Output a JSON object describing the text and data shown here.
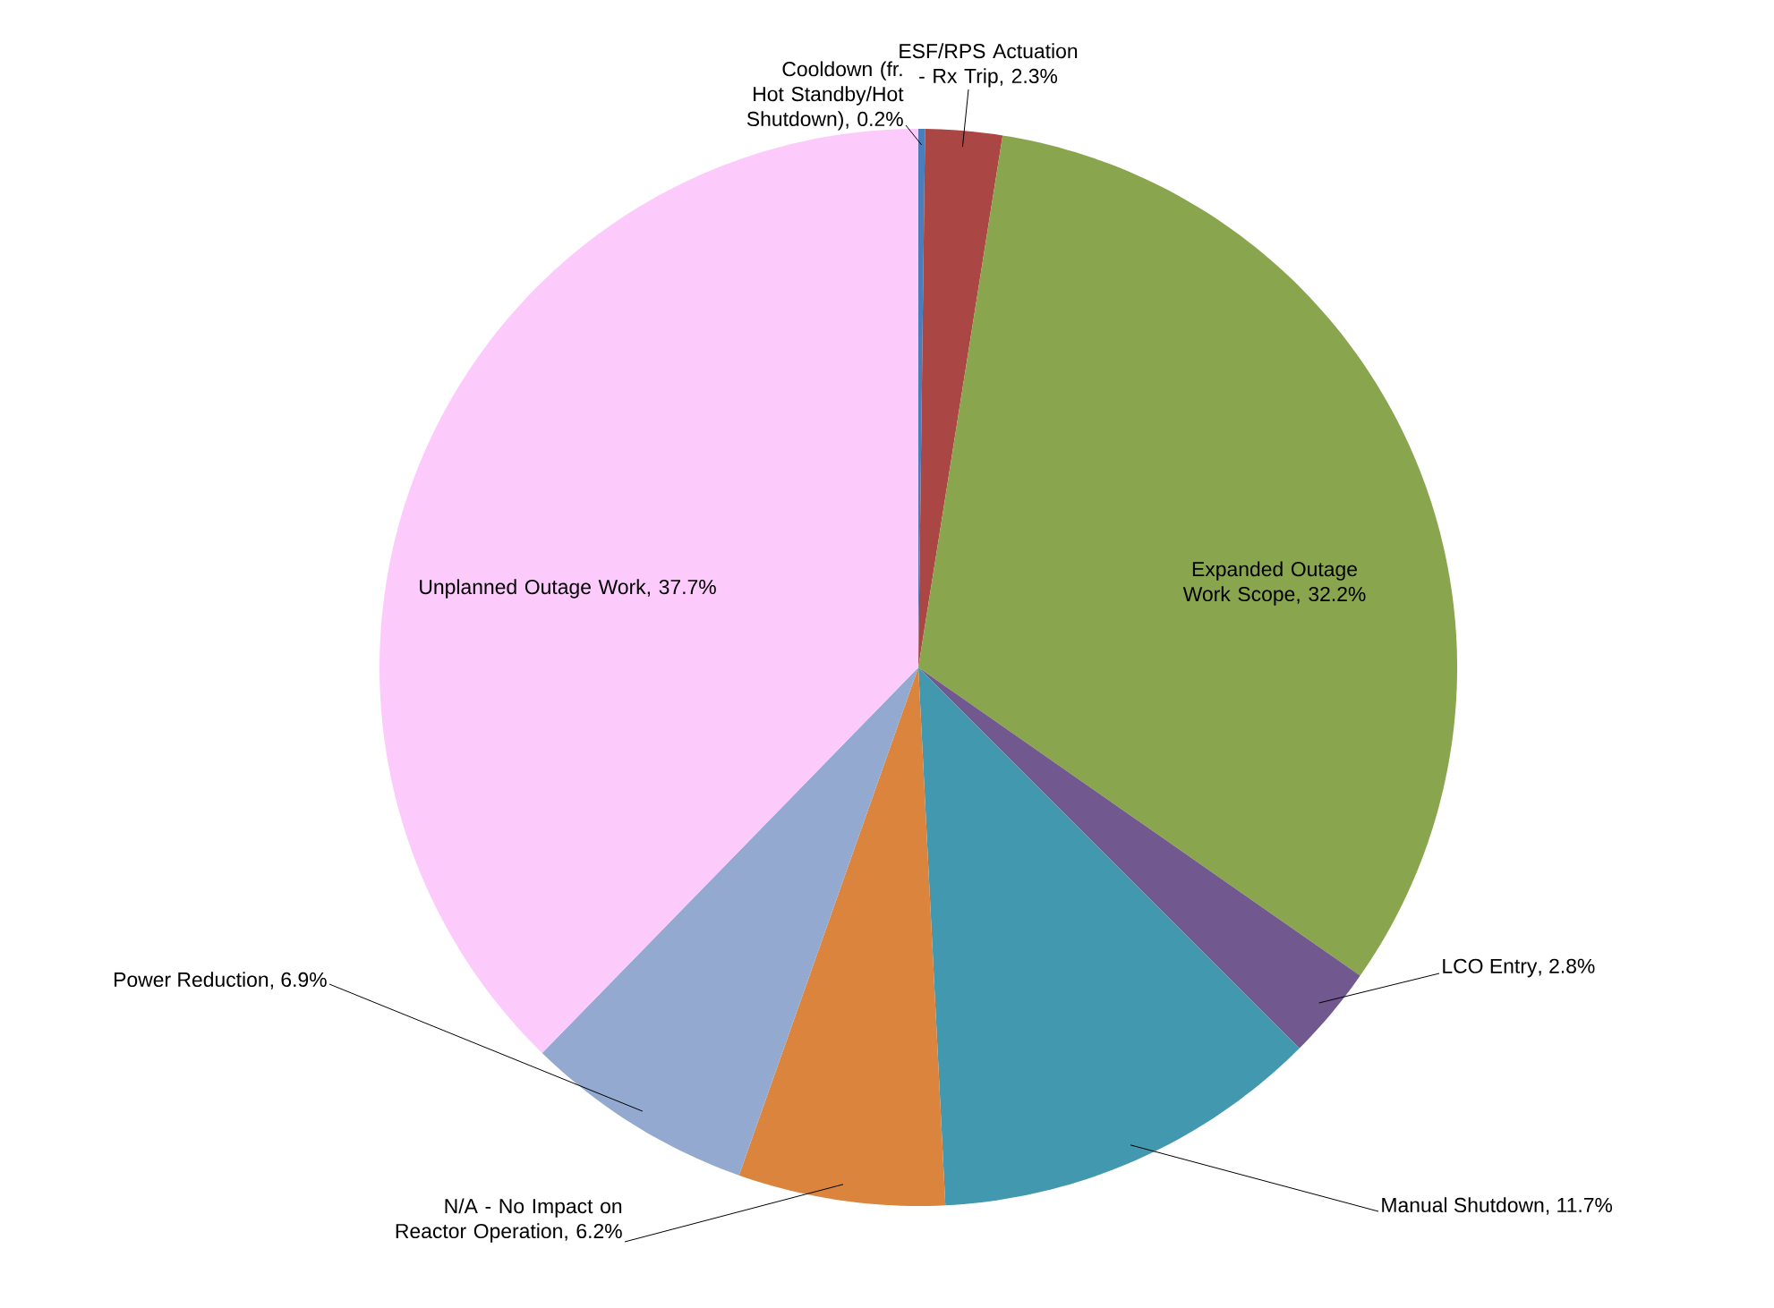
{
  "chart_data": {
    "type": "pie",
    "data_labels": true,
    "categories": [
      "Cooldown (fr. Hot Standby/Hot Shutdown)",
      "ESF/RPS Actuation - Rx Trip",
      "Expanded Outage Work Scope",
      "LCO Entry",
      "Manual Shutdown",
      "N/A - No Impact on Reactor Operation",
      "Power Reduction",
      "Unplanned Outage Work"
    ],
    "values": [
      0.2,
      2.3,
      32.2,
      2.8,
      11.7,
      6.2,
      6.9,
      37.7
    ],
    "value_labels": [
      ", 0.2%",
      ", 2.3%",
      ", 32.2%",
      ", 2.8%",
      ", 11.7%",
      ", 6.2%",
      ", 6.9%",
      ", 37.7%"
    ],
    "colors": [
      "#4a7ebb",
      "#aa4643",
      "#89a54e",
      "#71588f",
      "#4198af",
      "#db843d",
      "#93a9cf",
      "#fccbfc"
    ]
  }
}
